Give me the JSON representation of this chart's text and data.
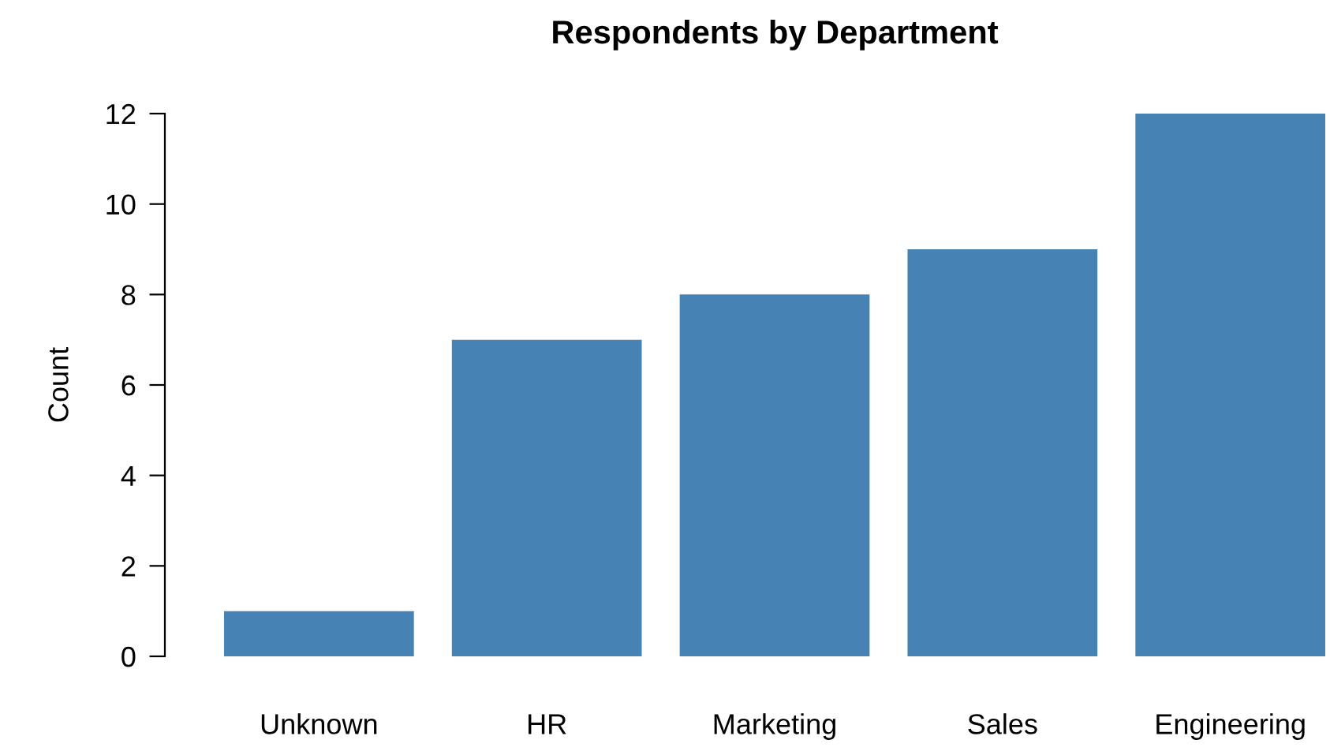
{
  "chart_data": {
    "type": "bar",
    "title": "Respondents by Department",
    "ylabel": "Count",
    "categories": [
      "Unknown",
      "HR",
      "Marketing",
      "Sales",
      "Engineering"
    ],
    "values": [
      1,
      7,
      8,
      9,
      12
    ],
    "color": "#4682b4",
    "ylim": [
      0,
      12
    ],
    "yticks": [
      0,
      2,
      4,
      6,
      8,
      10,
      12
    ],
    "grid": false,
    "legend": false
  }
}
